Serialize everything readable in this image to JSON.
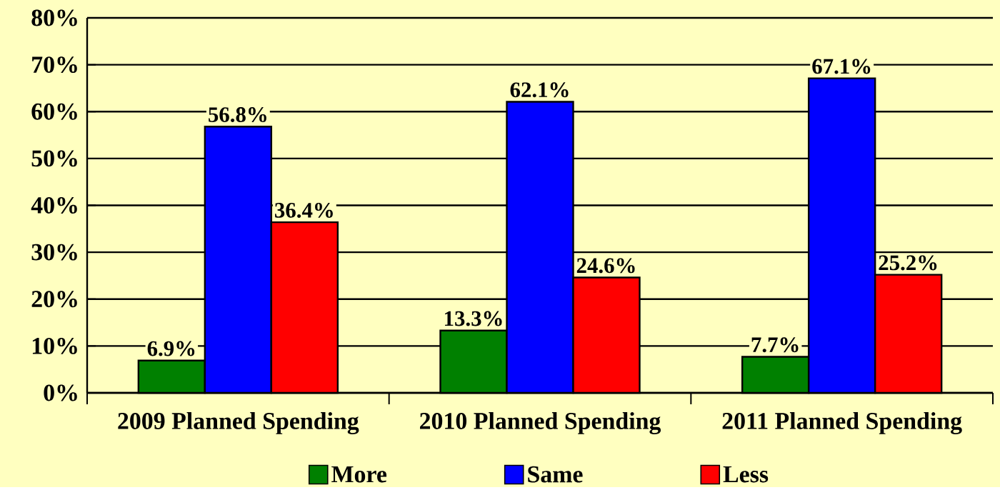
{
  "chart_data": {
    "type": "bar",
    "categories": [
      "2009 Planned Spending",
      "2010 Planned Spending",
      "2011 Planned Spending"
    ],
    "series": [
      {
        "name": "More",
        "color": "#008000",
        "values": [
          6.9,
          13.3,
          7.7
        ],
        "value_labels": [
          "6.9%",
          "13.3%",
          "7.7%"
        ]
      },
      {
        "name": "Same",
        "color": "#0000ff",
        "values": [
          56.8,
          62.1,
          67.1
        ],
        "value_labels": [
          "56.8%",
          "62.1%",
          "67.1%"
        ]
      },
      {
        "name": "Less",
        "color": "#ff0000",
        "values": [
          36.4,
          24.6,
          25.2
        ],
        "value_labels": [
          "36.4%",
          "24.6%",
          "25.2%"
        ]
      }
    ],
    "ylim": [
      0,
      80
    ],
    "yticks": [
      {
        "value": 0,
        "label": "0%"
      },
      {
        "value": 10,
        "label": "10%"
      },
      {
        "value": 20,
        "label": "20%"
      },
      {
        "value": 30,
        "label": "30%"
      },
      {
        "value": 40,
        "label": "40%"
      },
      {
        "value": 50,
        "label": "50%"
      },
      {
        "value": 60,
        "label": "60%"
      },
      {
        "value": 70,
        "label": "70%"
      },
      {
        "value": 80,
        "label": "80%"
      }
    ],
    "grid": "y",
    "legend": "bottom"
  }
}
